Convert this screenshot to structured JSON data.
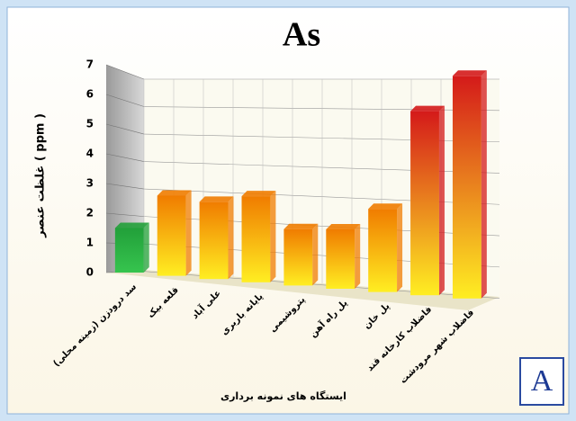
{
  "chart_data": {
    "type": "bar",
    "title": "As",
    "y_label": "غلظت عنصر ( ppm )",
    "x_label": "ایستگاه های نمونه برداری",
    "categories": [
      "سد درودزن (زمینه محلی)",
      "قلعه بیک",
      "علی آباد",
      "پایانه باربری",
      "پتروشیمی",
      "پل راه آهن",
      "پل خان",
      "فاضلاب کارخانه قند",
      "فاضلاب شهر مرودشت"
    ],
    "values": [
      1.5,
      2.7,
      2.6,
      2.9,
      1.9,
      2.0,
      2.8,
      6.2,
      7.5
    ],
    "colors": [
      "#22a03a",
      "#f07c00",
      "#f07c00",
      "#f07c00",
      "#f07c00",
      "#f07c00",
      "#f07c00",
      "#d41a1a",
      "#d41a1a"
    ],
    "ylim": [
      0,
      7
    ],
    "yticks": [
      0,
      1,
      2,
      3,
      4,
      5,
      6,
      7
    ],
    "grid": true,
    "annotations": [
      "A"
    ]
  }
}
